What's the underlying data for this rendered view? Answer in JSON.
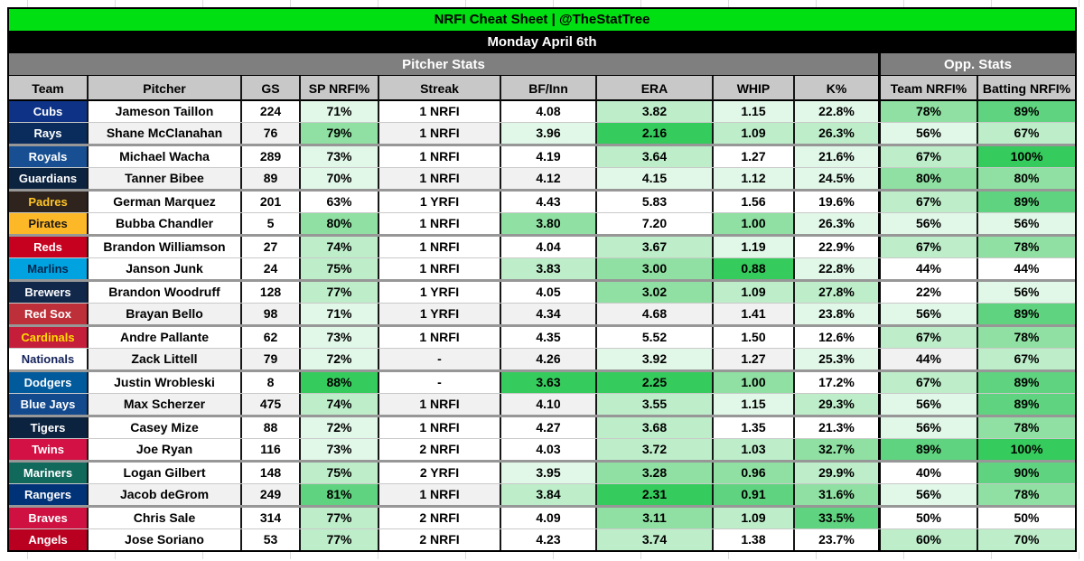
{
  "title_bar": {
    "text": "NRFI Cheat Sheet | @TheStatTree",
    "bg": "#00DF12",
    "fg": "#000000"
  },
  "date_bar": {
    "text": "Monday April 6th",
    "bg": "#000000",
    "fg": "#FFFFFF"
  },
  "sections": {
    "pitcher_label": "Pitcher Stats",
    "opp_label": "Opp. Stats",
    "bg": "#7F7F7F"
  },
  "columns": [
    "Team",
    "Pitcher",
    "GS",
    "SP NRFI%",
    "Streak",
    "BF/Inn",
    "ERA",
    "WHIP",
    "K%",
    "Team NRFI%",
    "Batting NRFI%"
  ],
  "column_keys": [
    "team",
    "pitcher",
    "gs",
    "sp-nrfi",
    "streak",
    "bf-inn",
    "era",
    "whip",
    "k-pct",
    "team-nrfi",
    "batting-nrfi"
  ],
  "colhead_bg": "#C8C8C8",
  "heat_palette": [
    "",
    "#E1F7E8",
    "#BEEDCA",
    "#8FE0A2",
    "#5FD37F",
    "#35CB5D"
  ],
  "band_color": "#F1F1F1",
  "rows": [
    {
      "team": "Cubs",
      "team_bg": "#0E3386",
      "team_fg": "#FFFFFF",
      "band": false,
      "pitcher": "Jameson Taillon",
      "values": [
        "224",
        "71%",
        "1 NRFI",
        "4.08",
        "3.82",
        "1.15",
        "22.8%",
        "78%",
        "89%"
      ],
      "heat": [
        0,
        1,
        0,
        0,
        2,
        1,
        1,
        3,
        4
      ]
    },
    {
      "team": "Rays",
      "team_bg": "#092C5C",
      "team_fg": "#FFFFFF",
      "band": true,
      "pitcher": "Shane McClanahan",
      "values": [
        "76",
        "79%",
        "1 NRFI",
        "3.96",
        "2.16",
        "1.09",
        "26.3%",
        "56%",
        "67%"
      ],
      "heat": [
        0,
        3,
        0,
        1,
        5,
        2,
        2,
        1,
        2
      ]
    },
    {
      "team": "Royals",
      "team_bg": "#174F92",
      "team_fg": "#FFFFFF",
      "band": false,
      "pitcher": "Michael Wacha",
      "values": [
        "289",
        "73%",
        "1 NRFI",
        "4.19",
        "3.64",
        "1.27",
        "21.6%",
        "67%",
        "100%"
      ],
      "heat": [
        0,
        1,
        0,
        0,
        2,
        0,
        1,
        2,
        5
      ]
    },
    {
      "team": "Guardians",
      "team_bg": "#0C2340",
      "team_fg": "#FFFFFF",
      "band": true,
      "pitcher": "Tanner Bibee",
      "values": [
        "89",
        "70%",
        "1 NRFI",
        "4.12",
        "4.15",
        "1.12",
        "24.5%",
        "80%",
        "80%"
      ],
      "heat": [
        0,
        1,
        0,
        0,
        1,
        1,
        1,
        3,
        3
      ]
    },
    {
      "team": "Padres",
      "team_bg": "#2F241D",
      "team_fg": "#FFC425",
      "band": false,
      "pitcher": "German Marquez",
      "values": [
        "201",
        "63%",
        "1 YRFI",
        "4.43",
        "5.83",
        "1.56",
        "19.6%",
        "67%",
        "89%"
      ],
      "heat": [
        0,
        0,
        0,
        0,
        0,
        0,
        0,
        2,
        4
      ]
    },
    {
      "team": "Pirates",
      "team_bg": "#FDB827",
      "team_fg": "#1C1A17",
      "band": false,
      "pitcher": "Bubba Chandler",
      "values": [
        "5",
        "80%",
        "1 NRFI",
        "3.80",
        "7.20",
        "1.00",
        "26.3%",
        "56%",
        "56%"
      ],
      "heat": [
        0,
        3,
        0,
        3,
        0,
        3,
        1,
        1,
        1
      ]
    },
    {
      "team": "Reds",
      "team_bg": "#C6011F",
      "team_fg": "#FFFFFF",
      "band": false,
      "pitcher": "Brandon Williamson",
      "values": [
        "27",
        "74%",
        "1 NRFI",
        "4.04",
        "3.67",
        "1.19",
        "22.9%",
        "67%",
        "78%"
      ],
      "heat": [
        0,
        2,
        0,
        0,
        2,
        1,
        0,
        2,
        3
      ]
    },
    {
      "team": "Marlins",
      "team_bg": "#00A3E0",
      "team_fg": "#00264D",
      "band": false,
      "pitcher": "Janson Junk",
      "values": [
        "24",
        "75%",
        "1 NRFI",
        "3.83",
        "3.00",
        "0.88",
        "22.8%",
        "44%",
        "44%"
      ],
      "heat": [
        0,
        2,
        0,
        2,
        3,
        5,
        1,
        0,
        0
      ]
    },
    {
      "team": "Brewers",
      "team_bg": "#12284B",
      "team_fg": "#FFFFFF",
      "band": false,
      "pitcher": "Brandon Woodruff",
      "values": [
        "128",
        "77%",
        "1 YRFI",
        "4.05",
        "3.02",
        "1.09",
        "27.8%",
        "22%",
        "56%"
      ],
      "heat": [
        0,
        2,
        0,
        0,
        3,
        2,
        2,
        0,
        1
      ]
    },
    {
      "team": "Red Sox",
      "team_bg": "#BD3039",
      "team_fg": "#FFFFFF",
      "band": true,
      "pitcher": "Brayan Bello",
      "values": [
        "98",
        "71%",
        "1 YRFI",
        "4.34",
        "4.68",
        "1.41",
        "23.8%",
        "56%",
        "89%"
      ],
      "heat": [
        0,
        1,
        0,
        0,
        0,
        0,
        1,
        1,
        4
      ]
    },
    {
      "team": "Cardinals",
      "team_bg": "#C41E3A",
      "team_fg": "#FEDB00",
      "band": false,
      "pitcher": "Andre Pallante",
      "values": [
        "62",
        "73%",
        "1 NRFI",
        "4.35",
        "5.52",
        "1.50",
        "12.6%",
        "67%",
        "78%"
      ],
      "heat": [
        0,
        1,
        0,
        0,
        0,
        0,
        0,
        2,
        3
      ]
    },
    {
      "team": "Nationals",
      "team_bg": "#FFFFFF",
      "team_fg": "#14225A",
      "band": true,
      "pitcher": "Zack Littell",
      "values": [
        "79",
        "72%",
        "-",
        "4.26",
        "3.92",
        "1.27",
        "25.3%",
        "44%",
        "67%"
      ],
      "heat": [
        0,
        1,
        0,
        0,
        1,
        0,
        1,
        0,
        2
      ]
    },
    {
      "team": "Dodgers",
      "team_bg": "#005A9C",
      "team_fg": "#FFFFFF",
      "band": false,
      "pitcher": "Justin Wrobleski",
      "values": [
        "8",
        "88%",
        "-",
        "3.63",
        "2.25",
        "1.00",
        "17.2%",
        "67%",
        "89%"
      ],
      "heat": [
        0,
        5,
        0,
        5,
        5,
        3,
        0,
        2,
        4
      ]
    },
    {
      "team": "Blue Jays",
      "team_bg": "#134A8E",
      "team_fg": "#FFFFFF",
      "band": true,
      "pitcher": "Max Scherzer",
      "values": [
        "475",
        "74%",
        "1 NRFI",
        "4.10",
        "3.55",
        "1.15",
        "29.3%",
        "56%",
        "89%"
      ],
      "heat": [
        0,
        2,
        0,
        0,
        2,
        1,
        2,
        1,
        4
      ]
    },
    {
      "team": "Tigers",
      "team_bg": "#0C2340",
      "team_fg": "#FFFFFF",
      "band": false,
      "pitcher": "Casey Mize",
      "values": [
        "88",
        "72%",
        "1 NRFI",
        "4.27",
        "3.68",
        "1.35",
        "21.3%",
        "56%",
        "78%"
      ],
      "heat": [
        0,
        1,
        0,
        0,
        2,
        0,
        0,
        1,
        3
      ]
    },
    {
      "team": "Twins",
      "team_bg": "#D31145",
      "team_fg": "#FFFFFF",
      "band": false,
      "pitcher": "Joe Ryan",
      "values": [
        "116",
        "73%",
        "2 NRFI",
        "4.03",
        "3.72",
        "1.03",
        "32.7%",
        "89%",
        "100%"
      ],
      "heat": [
        0,
        1,
        0,
        0,
        2,
        2,
        3,
        4,
        5
      ]
    },
    {
      "team": "Mariners",
      "team_bg": "#11695C",
      "team_fg": "#FFFFFF",
      "band": false,
      "pitcher": "Logan Gilbert",
      "values": [
        "148",
        "75%",
        "2 YRFI",
        "3.95",
        "3.28",
        "0.96",
        "29.9%",
        "40%",
        "90%"
      ],
      "heat": [
        0,
        2,
        0,
        1,
        3,
        3,
        2,
        0,
        4
      ]
    },
    {
      "team": "Rangers",
      "team_bg": "#003278",
      "team_fg": "#FFFFFF",
      "band": true,
      "pitcher": "Jacob deGrom",
      "values": [
        "249",
        "81%",
        "1 NRFI",
        "3.84",
        "2.31",
        "0.91",
        "31.6%",
        "56%",
        "78%"
      ],
      "heat": [
        0,
        4,
        0,
        2,
        5,
        4,
        3,
        1,
        3
      ]
    },
    {
      "team": "Braves",
      "team_bg": "#CE1141",
      "team_fg": "#FFFFFF",
      "band": false,
      "pitcher": "Chris Sale",
      "values": [
        "314",
        "77%",
        "2 NRFI",
        "4.09",
        "3.11",
        "1.09",
        "33.5%",
        "50%",
        "50%"
      ],
      "heat": [
        0,
        2,
        0,
        0,
        3,
        2,
        4,
        0,
        0
      ]
    },
    {
      "team": "Angels",
      "team_bg": "#BA0021",
      "team_fg": "#FFFFFF",
      "band": false,
      "pitcher": "Jose Soriano",
      "values": [
        "53",
        "77%",
        "2 NRFI",
        "4.23",
        "3.74",
        "1.38",
        "23.7%",
        "60%",
        "70%"
      ],
      "heat": [
        0,
        2,
        0,
        0,
        2,
        0,
        0,
        2,
        2
      ]
    }
  ]
}
